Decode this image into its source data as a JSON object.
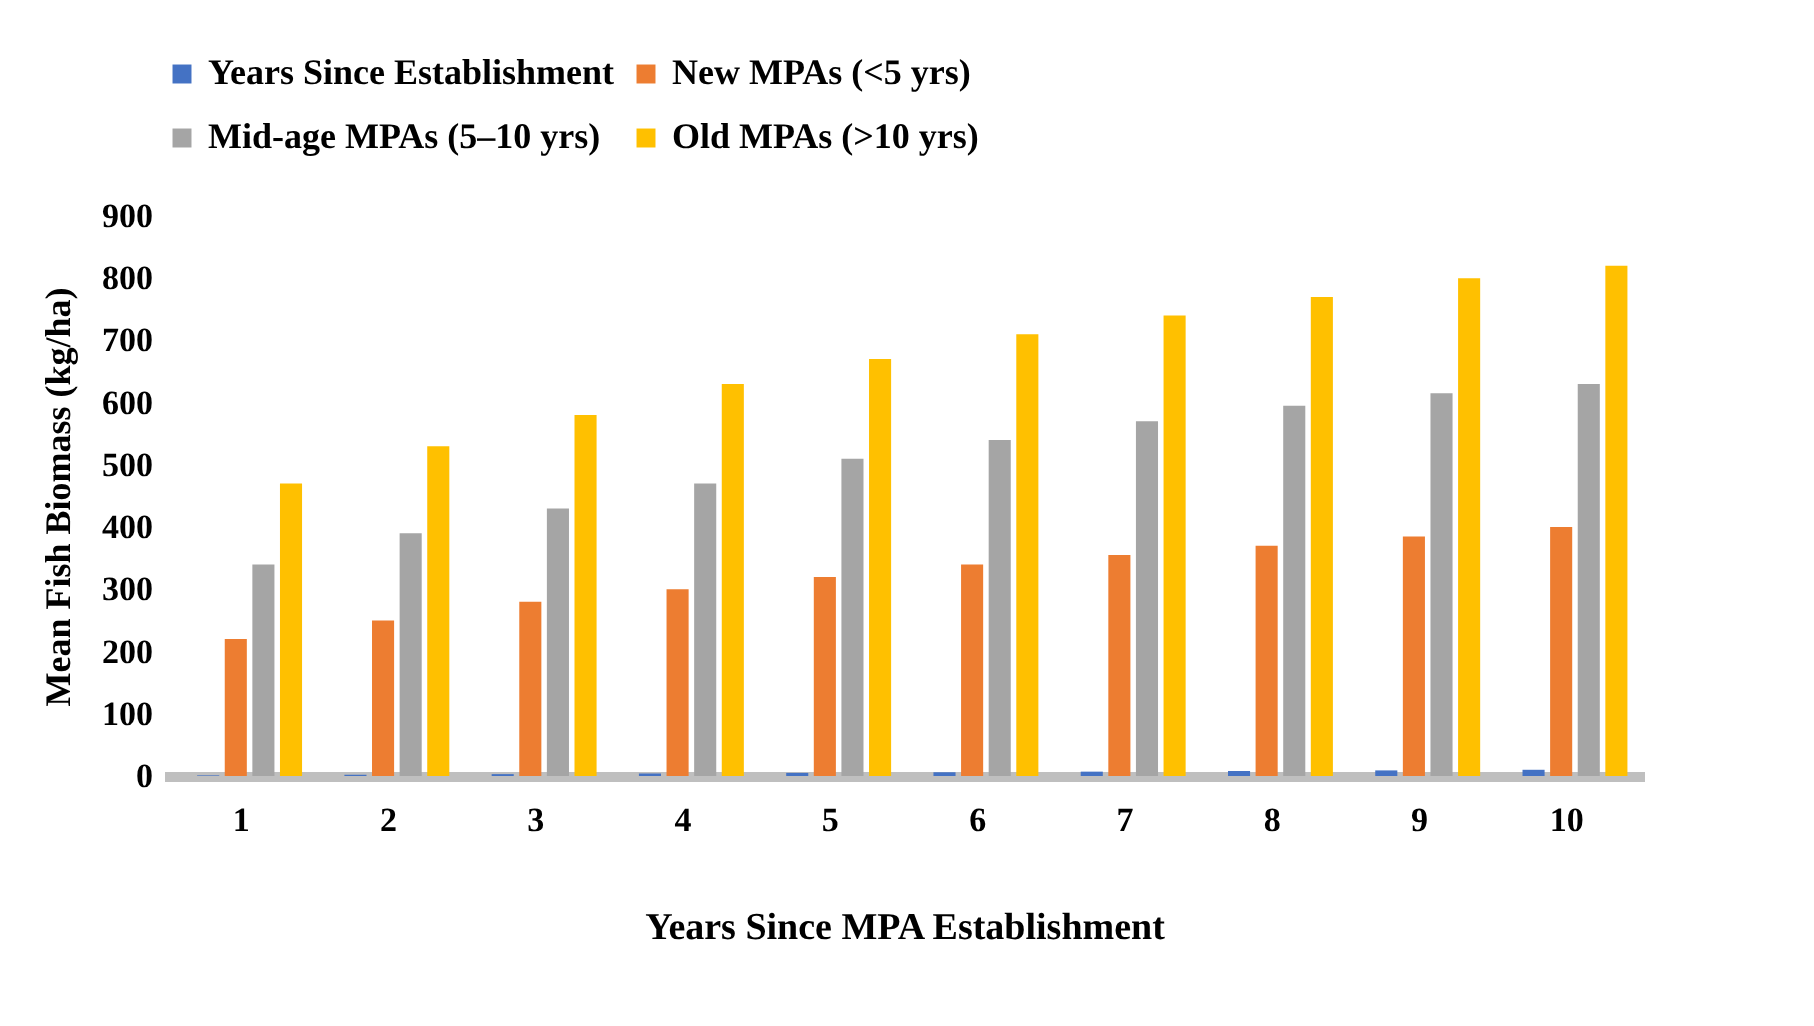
{
  "chart_data": {
    "type": "bar",
    "xlabel": "Years Since MPA Establishment",
    "ylabel": "Mean Fish Biomass (kg/ha)",
    "categories": [
      "1",
      "2",
      "3",
      "4",
      "5",
      "6",
      "7",
      "8",
      "9",
      "10"
    ],
    "series": [
      {
        "name": "Years Since Establishment",
        "color": "#4472c4",
        "values": [
          1,
          2,
          3,
          4,
          5,
          6,
          7,
          8,
          9,
          10
        ]
      },
      {
        "name": "New MPAs (<5 yrs)",
        "color": "#ed7d31",
        "values": [
          220,
          250,
          280,
          300,
          320,
          340,
          355,
          370,
          385,
          400
        ]
      },
      {
        "name": "Mid-age MPAs (5–10 yrs)",
        "color": "#a5a5a5",
        "values": [
          340,
          390,
          430,
          470,
          510,
          540,
          570,
          595,
          615,
          630
        ]
      },
      {
        "name": "Old MPAs (>10 yrs)",
        "color": "#ffc000",
        "values": [
          470,
          530,
          580,
          630,
          670,
          710,
          740,
          770,
          800,
          820
        ]
      }
    ],
    "ylim": [
      0,
      900
    ],
    "yticks": [
      0,
      100,
      200,
      300,
      400,
      500,
      600,
      700,
      800,
      900
    ],
    "grid": false,
    "legend": "top"
  }
}
